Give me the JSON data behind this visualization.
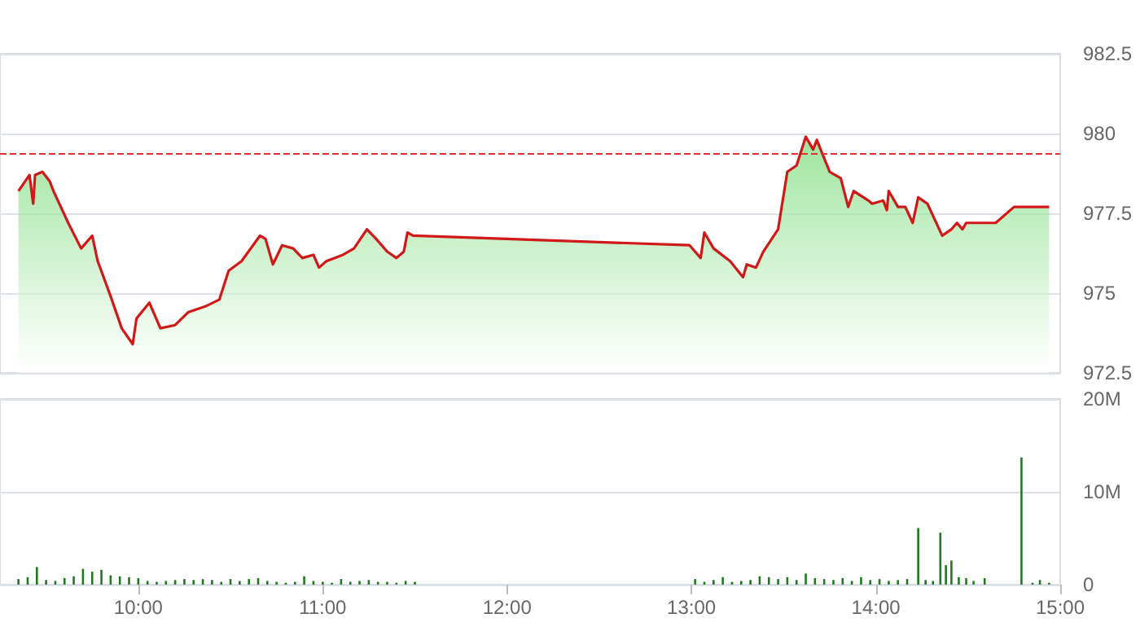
{
  "chart_data": [
    {
      "type": "area",
      "x": [
        9.35,
        9.41,
        9.43,
        9.44,
        9.48,
        9.52,
        9.54,
        9.62,
        9.69,
        9.75,
        9.78,
        9.85,
        9.91,
        9.97,
        9.99,
        10.06,
        10.12,
        10.2,
        10.27,
        10.37,
        10.44,
        10.49,
        10.56,
        10.66,
        10.69,
        10.73,
        10.78,
        10.84,
        10.89,
        10.95,
        10.98,
        11.02,
        11.11,
        11.17,
        11.24,
        11.29,
        11.35,
        11.4,
        11.44,
        11.46,
        11.49,
        12.99,
        13.05,
        13.07,
        13.12,
        13.21,
        13.28,
        13.3,
        13.35,
        13.39,
        13.47,
        13.52,
        13.57,
        13.62,
        13.66,
        13.68,
        13.75,
        13.81,
        13.85,
        13.88,
        13.96,
        13.98,
        14.04,
        14.06,
        14.07,
        14.12,
        14.16,
        14.2,
        14.23,
        14.28,
        14.36,
        14.41,
        14.44,
        14.47,
        14.49,
        14.65,
        14.75,
        14.94
      ],
      "series": [
        {
          "color": "#d01818",
          "values": [
            978.2,
            978.7,
            977.8,
            978.7,
            978.8,
            978.5,
            978.2,
            977.2,
            976.4,
            976.8,
            976.0,
            974.9,
            973.9,
            973.4,
            974.2,
            974.7,
            973.9,
            974.0,
            974.4,
            974.6,
            974.8,
            975.7,
            976.0,
            976.8,
            976.7,
            975.9,
            976.5,
            976.4,
            976.1,
            976.2,
            975.8,
            976.0,
            976.2,
            976.4,
            977.0,
            976.7,
            976.3,
            976.1,
            976.3,
            976.9,
            976.8,
            976.5,
            976.1,
            976.9,
            976.4,
            976.0,
            975.5,
            975.9,
            975.8,
            976.3,
            977.0,
            978.8,
            979.0,
            979.9,
            979.5,
            979.8,
            978.8,
            978.6,
            977.7,
            978.2,
            977.9,
            977.8,
            977.9,
            977.6,
            978.2,
            977.7,
            977.7,
            977.2,
            978.0,
            977.8,
            976.8,
            977.0,
            977.2,
            977.0,
            977.2,
            977.2,
            977.7,
            977.7
          ]
        }
      ],
      "xlim": [
        9.25,
        15
      ],
      "ylim": [
        972.5,
        982.5
      ],
      "yticks": [
        972.5,
        975,
        977.5,
        980,
        982.5
      ],
      "ref_lines": [
        {
          "axis": "y",
          "value": 979.4,
          "color": "#e03030",
          "line_style": "dashed"
        }
      ],
      "grid": "y",
      "marker": "none",
      "line_style": "solid",
      "tick_labels": "y"
    },
    {
      "type": "bar",
      "x": [
        9.35,
        9.4,
        9.45,
        9.5,
        9.55,
        9.6,
        9.65,
        9.7,
        9.75,
        9.8,
        9.85,
        9.9,
        9.95,
        10.0,
        10.05,
        10.1,
        10.15,
        10.2,
        10.25,
        10.3,
        10.35,
        10.4,
        10.45,
        10.5,
        10.55,
        10.6,
        10.65,
        10.7,
        10.75,
        10.8,
        10.85,
        10.9,
        10.95,
        11.0,
        11.05,
        11.1,
        11.15,
        11.2,
        11.25,
        11.3,
        11.35,
        11.4,
        11.45,
        11.5,
        13.02,
        13.07,
        13.12,
        13.17,
        13.22,
        13.27,
        13.32,
        13.37,
        13.42,
        13.47,
        13.52,
        13.57,
        13.62,
        13.67,
        13.72,
        13.77,
        13.82,
        13.87,
        13.92,
        13.97,
        14.02,
        14.07,
        14.12,
        14.17,
        14.23,
        14.27,
        14.31,
        14.35,
        14.38,
        14.41,
        14.45,
        14.49,
        14.53,
        14.59,
        14.79,
        14.85,
        14.89,
        14.94
      ],
      "series": [
        {
          "color": "#1f7a1f",
          "values": [
            0.6,
            0.8,
            1.9,
            0.5,
            0.4,
            0.7,
            0.9,
            1.7,
            1.4,
            1.6,
            1.0,
            0.9,
            0.8,
            0.7,
            0.4,
            0.3,
            0.4,
            0.5,
            0.6,
            0.5,
            0.6,
            0.5,
            0.3,
            0.6,
            0.4,
            0.6,
            0.7,
            0.4,
            0.3,
            0.2,
            0.3,
            0.9,
            0.4,
            0.3,
            0.2,
            0.6,
            0.3,
            0.4,
            0.5,
            0.3,
            0.3,
            0.2,
            0.4,
            0.3,
            0.6,
            0.3,
            0.5,
            0.8,
            0.3,
            0.4,
            0.5,
            0.9,
            0.8,
            0.6,
            0.8,
            0.5,
            1.2,
            0.7,
            0.6,
            0.5,
            0.7,
            0.4,
            0.8,
            0.5,
            0.6,
            0.4,
            0.5,
            0.6,
            6.1,
            0.5,
            0.4,
            5.6,
            2.1,
            2.6,
            0.8,
            0.7,
            0.4,
            0.7,
            13.7,
            0.2,
            0.5,
            0.2
          ]
        }
      ],
      "xlim": [
        9.25,
        15
      ],
      "xticks": [
        {
          "value": 10,
          "label": "10:00"
        },
        {
          "value": 11,
          "label": "11:00"
        },
        {
          "value": 12,
          "label": "12:00"
        },
        {
          "value": 13,
          "label": "13:00"
        },
        {
          "value": 14,
          "label": "14:00"
        },
        {
          "value": 15,
          "label": "15:00"
        }
      ],
      "ylim": [
        0,
        20
      ],
      "yticks": [
        {
          "value": 0,
          "label": "0"
        },
        {
          "value": 10,
          "label": "10M"
        },
        {
          "value": 20,
          "label": "20M"
        }
      ],
      "grid": "y"
    }
  ]
}
